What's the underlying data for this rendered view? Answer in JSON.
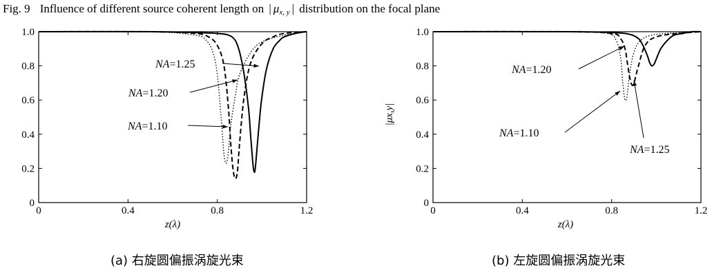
{
  "figure": {
    "label": "Fig. 9",
    "title_before": "Influence of different source coherent length on",
    "title_symbol": "μ",
    "title_subscript": "x, y",
    "title_after": "distribution on the focal plane"
  },
  "chart_data": [
    {
      "type": "line",
      "panel": "a",
      "caption": "(a) 右旋圆偏振涡旋光束",
      "xlabel": "z(λ)",
      "ylabel": "",
      "xlim": [
        0,
        1.2
      ],
      "ylim": [
        0,
        1.0
      ],
      "xticks": [
        "0",
        "0.4",
        "0.8",
        "1.2"
      ],
      "yticks": [
        "0",
        "0.2",
        "0.4",
        "0.6",
        "0.8",
        "1.0"
      ],
      "grid": false,
      "series": [
        {
          "name": "NA=1.25",
          "style": "solid",
          "color": "#000000",
          "x": [
            0,
            0.5,
            0.7,
            0.8,
            0.85,
            0.88,
            0.9,
            0.92,
            0.94,
            0.95,
            0.96,
            0.965,
            0.97,
            0.98,
            0.99,
            1.0,
            1.02,
            1.05,
            1.08,
            1.1,
            1.15,
            1.2
          ],
          "y": [
            1.0,
            1.0,
            0.995,
            0.99,
            0.98,
            0.95,
            0.88,
            0.75,
            0.55,
            0.38,
            0.22,
            0.18,
            0.2,
            0.35,
            0.5,
            0.62,
            0.78,
            0.9,
            0.95,
            0.97,
            0.99,
            1.0
          ]
        },
        {
          "name": "NA=1.20",
          "style": "dashed",
          "color": "#000000",
          "x": [
            0,
            0.5,
            0.7,
            0.76,
            0.8,
            0.83,
            0.85,
            0.86,
            0.87,
            0.88,
            0.89,
            0.9,
            0.92,
            0.95,
            1.0,
            1.05,
            1.1,
            1.2
          ],
          "y": [
            1.0,
            1.0,
            0.99,
            0.97,
            0.92,
            0.8,
            0.55,
            0.35,
            0.2,
            0.14,
            0.18,
            0.35,
            0.62,
            0.82,
            0.93,
            0.97,
            0.99,
            1.0
          ]
        },
        {
          "name": "NA=1.10",
          "style": "dotted",
          "color": "#000000",
          "x": [
            0,
            0.5,
            0.7,
            0.75,
            0.78,
            0.8,
            0.82,
            0.83,
            0.84,
            0.85,
            0.86,
            0.88,
            0.9,
            0.95,
            1.0,
            1.1,
            1.2
          ],
          "y": [
            1.0,
            1.0,
            0.98,
            0.95,
            0.88,
            0.75,
            0.45,
            0.28,
            0.23,
            0.3,
            0.45,
            0.62,
            0.75,
            0.88,
            0.94,
            0.98,
            1.0
          ]
        }
      ],
      "annotations": [
        {
          "prefix": "NA",
          "value": "=1.25"
        },
        {
          "prefix": "NA",
          "value": "=1.20"
        },
        {
          "prefix": "NA",
          "value": "=1.10"
        }
      ]
    },
    {
      "type": "line",
      "panel": "b",
      "caption": "(b) 左旋圆偏振涡旋光束",
      "xlabel": "z(λ)",
      "ylabel": "|μx,y|",
      "xlim": [
        0,
        1.2
      ],
      "ylim": [
        0,
        1.0
      ],
      "xticks": [
        "0",
        "0.4",
        "0.8",
        "1.2"
      ],
      "yticks": [
        "0",
        "0.2",
        "0.4",
        "0.6",
        "0.8",
        "1.0"
      ],
      "grid": false,
      "series": [
        {
          "name": "NA=1.25",
          "style": "solid",
          "color": "#000000",
          "x": [
            0,
            0.6,
            0.8,
            0.88,
            0.92,
            0.94,
            0.96,
            0.97,
            0.98,
            0.99,
            1.0,
            1.02,
            1.05,
            1.08,
            1.12,
            1.16,
            1.2
          ],
          "y": [
            1.0,
            1.0,
            0.995,
            0.985,
            0.96,
            0.92,
            0.86,
            0.82,
            0.8,
            0.81,
            0.84,
            0.9,
            0.95,
            0.98,
            0.99,
            1.0,
            1.0
          ]
        },
        {
          "name": "NA=1.20",
          "style": "dashed",
          "color": "#000000",
          "x": [
            0,
            0.6,
            0.8,
            0.84,
            0.86,
            0.87,
            0.88,
            0.89,
            0.9,
            0.92,
            0.95,
            1.0,
            1.1,
            1.2
          ],
          "y": [
            1.0,
            1.0,
            0.99,
            0.96,
            0.9,
            0.82,
            0.74,
            0.69,
            0.7,
            0.8,
            0.92,
            0.97,
            0.99,
            1.0
          ]
        },
        {
          "name": "NA=1.10",
          "style": "dotted",
          "color": "#000000",
          "x": [
            0,
            0.6,
            0.78,
            0.82,
            0.84,
            0.85,
            0.86,
            0.87,
            0.88,
            0.9,
            0.93,
            0.98,
            1.05,
            1.2
          ],
          "y": [
            1.0,
            1.0,
            0.99,
            0.95,
            0.85,
            0.7,
            0.6,
            0.63,
            0.75,
            0.88,
            0.95,
            0.98,
            0.99,
            1.0
          ]
        }
      ],
      "annotations": [
        {
          "prefix": "NA",
          "value": "=1.20"
        },
        {
          "prefix": "NA",
          "value": "=1.10"
        },
        {
          "prefix": "NA",
          "value": "=1.25"
        }
      ]
    }
  ]
}
